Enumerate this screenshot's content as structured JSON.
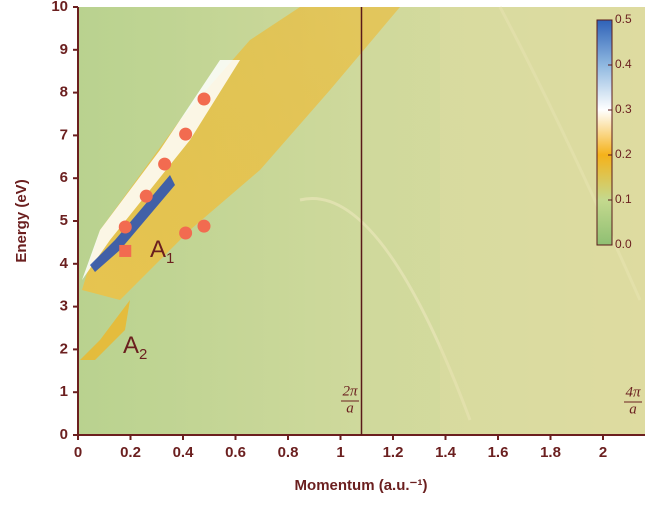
{
  "chart_data": {
    "type": "scatter",
    "xlabel": "Momentum (a.u.⁻¹)",
    "ylabel": "Energy (eV)",
    "xlim": [
      0,
      2.16
    ],
    "ylim": [
      0,
      10
    ],
    "xticks": [
      0,
      0.2,
      0.4,
      0.6,
      0.8,
      1,
      1.2,
      1.4,
      1.6,
      1.8,
      2
    ],
    "yticks": [
      0,
      1,
      2,
      3,
      4,
      5,
      6,
      7,
      8,
      9,
      10
    ],
    "vline": 1.08,
    "series": [
      {
        "marker": "circle",
        "color": "#f26b50",
        "x": [
          0.18,
          0.26,
          0.33,
          0.41,
          0.48,
          0.41,
          0.48
        ],
        "y": [
          4.86,
          5.58,
          6.33,
          7.03,
          7.85,
          4.72,
          4.88
        ]
      },
      {
        "marker": "square",
        "color": "#f26b50",
        "x": [
          0.18
        ],
        "y": [
          4.3
        ]
      }
    ],
    "annotations": [
      {
        "text": "A",
        "sub": "1"
      },
      {
        "text": "A",
        "sub": "2"
      },
      {
        "num": "2π",
        "den": "a"
      },
      {
        "num": "4π",
        "den": "a"
      }
    ],
    "colorbar": {
      "lim": [
        0,
        0.5
      ],
      "ticks": [
        {
          "value": 0,
          "label": "0.0"
        },
        0.1,
        0.2,
        0.3,
        0.4,
        0.5
      ],
      "colors": [
        "#8fbf73",
        "#c4d98e",
        "#f5b21a",
        "#ffffff",
        "#8fb8e0",
        "#2f62b8"
      ]
    }
  }
}
